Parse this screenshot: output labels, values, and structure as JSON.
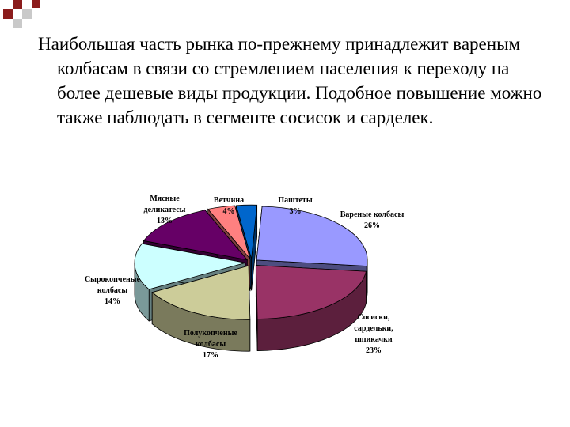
{
  "slide": {
    "text": "Наибольшая часть рынка по-прежнему принадлежит вареным колбасам в связи со стремлением населения к переходу на более дешевые виды продукции. Подобное повышение можно также наблюдать в сегменте сосисок и сарделек."
  },
  "colors": {
    "accent_square": "#8b1c1c"
  },
  "chart_data": {
    "type": "pie",
    "style": "3d-exploded",
    "title": "",
    "slices": [
      {
        "label": [
          "Вареные колбасы"
        ],
        "value": 26,
        "value_label": "26%",
        "color": "#9999ff"
      },
      {
        "label": [
          "Сосиски,",
          "сардельки,",
          "шпикачки"
        ],
        "value": 23,
        "value_label": "23%",
        "color": "#993366"
      },
      {
        "label": [
          "Полукопченые",
          "колбасы"
        ],
        "value": 17,
        "value_label": "17%",
        "color": "#cccc99"
      },
      {
        "label": [
          "Сырокопченые",
          "колбасы"
        ],
        "value": 14,
        "value_label": "14%",
        "color": "#ccffff"
      },
      {
        "label": [
          "Мясные",
          "деликатесы"
        ],
        "value": 13,
        "value_label": "13%",
        "color": "#660066"
      },
      {
        "label": [
          "Ветчина"
        ],
        "value": 4,
        "value_label": "4%",
        "color": "#ff8080"
      },
      {
        "label": [
          "Паштеты"
        ],
        "value": 3,
        "value_label": "3%",
        "color": "#0066cc"
      }
    ]
  }
}
